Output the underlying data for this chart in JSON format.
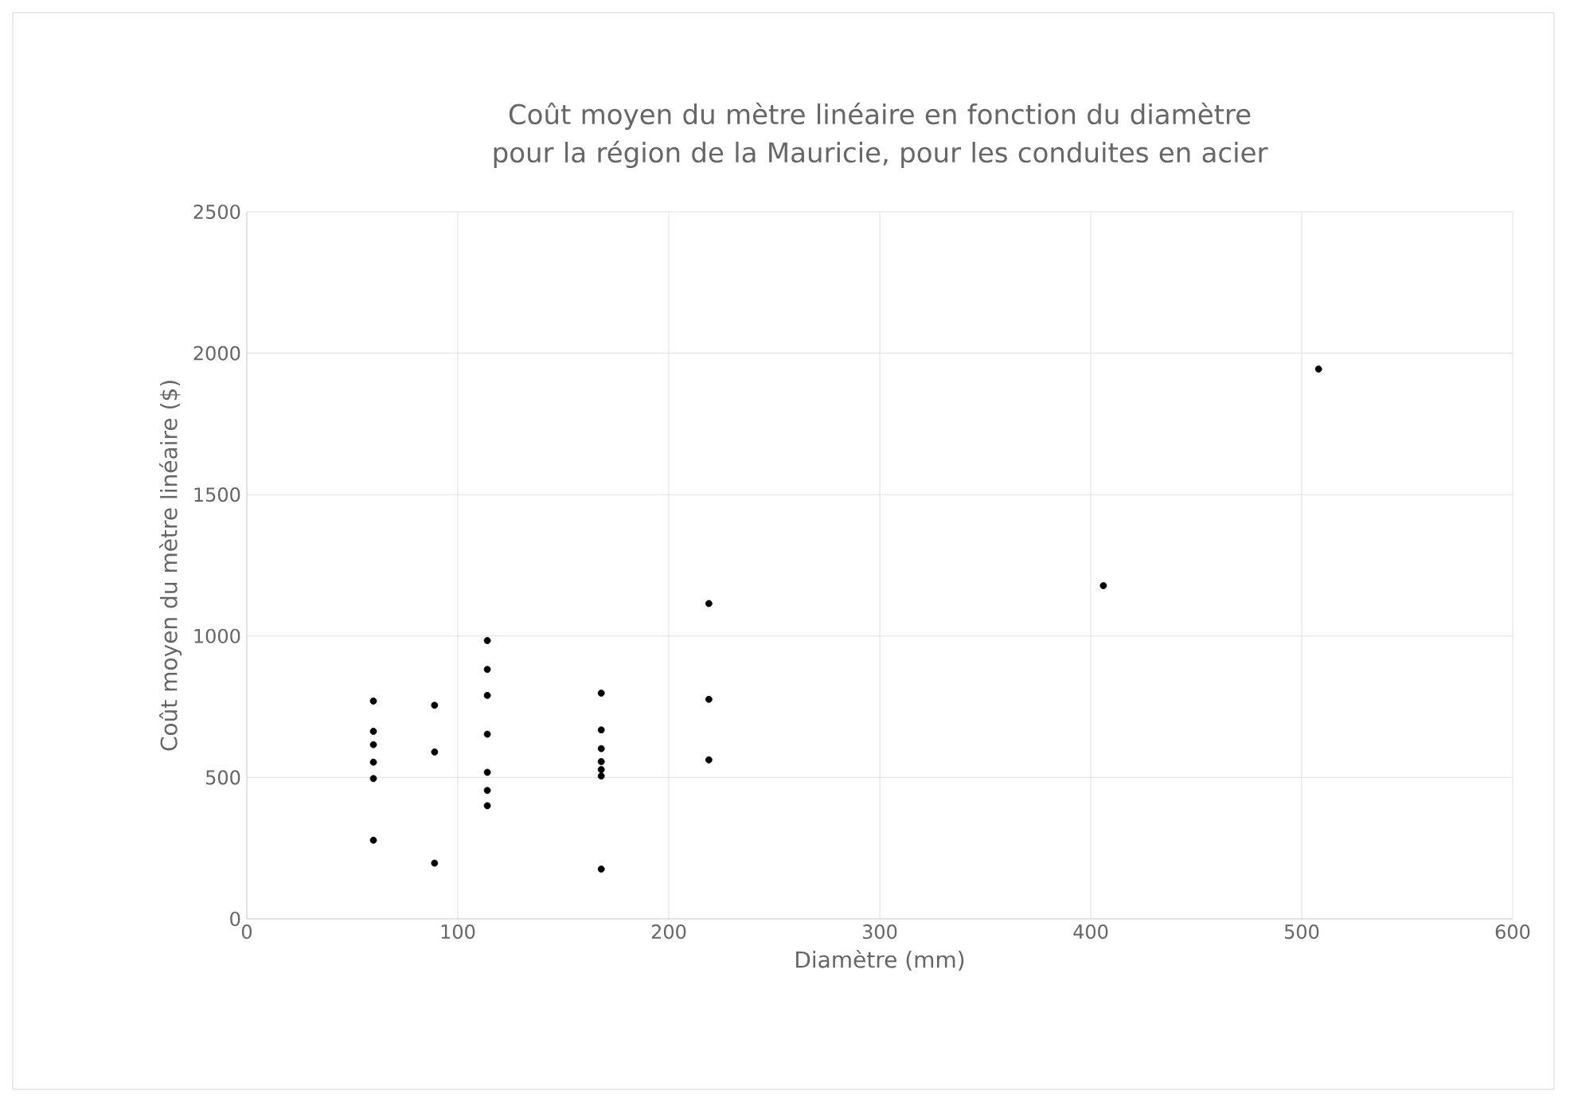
{
  "chart_data": {
    "type": "scatter",
    "title": "Coût moyen du mètre linéaire en fonction du diamètre pour la région de la Mauricie, pour les conduites en acier",
    "xlabel": "Diamètre (mm)",
    "ylabel": "Coût moyen du mètre linéaire ($)",
    "x": [
      60,
      60,
      60,
      60,
      60,
      60,
      89,
      89,
      89,
      114,
      114,
      114,
      114,
      114,
      114,
      114,
      168,
      168,
      168,
      168,
      168,
      168,
      168,
      219,
      219,
      219,
      406,
      508
    ],
    "series": [
      {
        "color": "#000000",
        "values": [
          770,
          663,
          616,
          554,
          496,
          278,
          755,
          590,
          197,
          984,
          882,
          790,
          653,
          518,
          454,
          400,
          798,
          668,
          602,
          556,
          528,
          505,
          176,
          1115,
          776,
          562,
          1178,
          1944
        ]
      }
    ],
    "xlim": [
      0,
      600
    ],
    "xticks": [
      0,
      100,
      200,
      300,
      400,
      500,
      600
    ],
    "ylim": [
      0,
      2500
    ],
    "yticks": [
      0,
      500,
      1000,
      1500,
      2000,
      2500
    ],
    "grid": true,
    "marker": "circle"
  }
}
